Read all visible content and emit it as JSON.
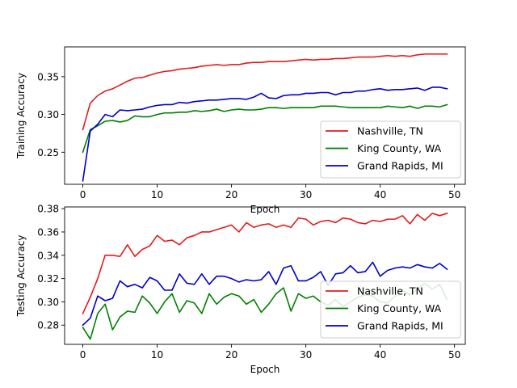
{
  "chart_data": [
    {
      "type": "line",
      "title": "",
      "xlabel": "Epoch",
      "ylabel": "Training Accuracy",
      "xlim": [
        -2.45,
        51.45
      ],
      "ylim": [
        0.2075,
        0.3895
      ],
      "xticks": [
        0,
        10,
        20,
        30,
        40,
        50
      ],
      "yticks": [
        0.25,
        0.3,
        0.35
      ],
      "ytick_labels": [
        "0.25",
        "0.30",
        "0.35"
      ],
      "grid": false,
      "legend": "lower-right",
      "x": [
        0,
        1,
        2,
        3,
        4,
        5,
        6,
        7,
        8,
        9,
        10,
        11,
        12,
        13,
        14,
        15,
        16,
        17,
        18,
        19,
        20,
        21,
        22,
        23,
        24,
        25,
        26,
        27,
        28,
        29,
        30,
        31,
        32,
        33,
        34,
        35,
        36,
        37,
        38,
        39,
        40,
        41,
        42,
        43,
        44,
        45,
        46,
        47,
        48,
        49
      ],
      "series": [
        {
          "name": "Nashville, TN",
          "color": "#e41a1c",
          "values": [
            0.28,
            0.315,
            0.325,
            0.331,
            0.334,
            0.339,
            0.344,
            0.348,
            0.349,
            0.352,
            0.355,
            0.357,
            0.358,
            0.36,
            0.361,
            0.362,
            0.364,
            0.365,
            0.366,
            0.365,
            0.366,
            0.366,
            0.368,
            0.369,
            0.369,
            0.37,
            0.37,
            0.37,
            0.371,
            0.372,
            0.373,
            0.372,
            0.373,
            0.373,
            0.374,
            0.374,
            0.375,
            0.376,
            0.376,
            0.376,
            0.377,
            0.378,
            0.377,
            0.378,
            0.377,
            0.379,
            0.38,
            0.38,
            0.38,
            0.38
          ]
        },
        {
          "name": "King County, WA",
          "color": "#008000",
          "values": [
            0.25,
            0.28,
            0.285,
            0.291,
            0.292,
            0.29,
            0.292,
            0.298,
            0.297,
            0.297,
            0.3,
            0.302,
            0.302,
            0.303,
            0.303,
            0.305,
            0.304,
            0.305,
            0.307,
            0.304,
            0.306,
            0.307,
            0.306,
            0.306,
            0.307,
            0.309,
            0.309,
            0.308,
            0.309,
            0.309,
            0.309,
            0.309,
            0.311,
            0.311,
            0.311,
            0.31,
            0.309,
            0.309,
            0.309,
            0.309,
            0.309,
            0.311,
            0.31,
            0.309,
            0.311,
            0.308,
            0.311,
            0.311,
            0.31,
            0.313
          ]
        },
        {
          "name": "Grand Rapids, MI",
          "color": "#0000cc",
          "values": [
            0.212,
            0.278,
            0.287,
            0.3,
            0.297,
            0.306,
            0.305,
            0.306,
            0.307,
            0.31,
            0.312,
            0.313,
            0.313,
            0.316,
            0.315,
            0.317,
            0.318,
            0.319,
            0.319,
            0.32,
            0.321,
            0.321,
            0.32,
            0.323,
            0.328,
            0.322,
            0.321,
            0.325,
            0.326,
            0.326,
            0.328,
            0.328,
            0.329,
            0.329,
            0.326,
            0.329,
            0.329,
            0.331,
            0.331,
            0.333,
            0.334,
            0.332,
            0.333,
            0.333,
            0.334,
            0.335,
            0.332,
            0.336,
            0.336,
            0.334
          ]
        }
      ]
    },
    {
      "type": "line",
      "title": "",
      "xlabel": "Epoch",
      "ylabel": "Testing Accuracy",
      "xlim": [
        -2.45,
        51.45
      ],
      "ylim": [
        0.2635,
        0.3815
      ],
      "xticks": [
        0,
        10,
        20,
        30,
        40,
        50
      ],
      "yticks": [
        0.28,
        0.3,
        0.32,
        0.34,
        0.36,
        0.38
      ],
      "ytick_labels": [
        "0.28",
        "0.30",
        "0.32",
        "0.34",
        "0.36",
        "0.38"
      ],
      "grid": false,
      "legend": "lower-right",
      "x": [
        0,
        1,
        2,
        3,
        4,
        5,
        6,
        7,
        8,
        9,
        10,
        11,
        12,
        13,
        14,
        15,
        16,
        17,
        18,
        19,
        20,
        21,
        22,
        23,
        24,
        25,
        26,
        27,
        28,
        29,
        30,
        31,
        32,
        33,
        34,
        35,
        36,
        37,
        38,
        39,
        40,
        41,
        42,
        43,
        44,
        45,
        46,
        47,
        48,
        49
      ],
      "series": [
        {
          "name": "Nashville, TN",
          "color": "#e41a1c",
          "values": [
            0.29,
            0.304,
            0.32,
            0.34,
            0.34,
            0.339,
            0.349,
            0.339,
            0.345,
            0.348,
            0.357,
            0.352,
            0.353,
            0.349,
            0.355,
            0.357,
            0.36,
            0.36,
            0.362,
            0.364,
            0.366,
            0.36,
            0.368,
            0.364,
            0.366,
            0.367,
            0.364,
            0.366,
            0.364,
            0.372,
            0.371,
            0.366,
            0.369,
            0.37,
            0.368,
            0.372,
            0.371,
            0.368,
            0.367,
            0.37,
            0.369,
            0.371,
            0.371,
            0.374,
            0.367,
            0.375,
            0.37,
            0.376,
            0.374,
            0.376
          ]
        },
        {
          "name": "King County, WA",
          "color": "#008000",
          "values": [
            0.278,
            0.268,
            0.29,
            0.298,
            0.276,
            0.287,
            0.292,
            0.291,
            0.305,
            0.299,
            0.29,
            0.3,
            0.307,
            0.291,
            0.301,
            0.299,
            0.29,
            0.307,
            0.298,
            0.304,
            0.307,
            0.305,
            0.298,
            0.302,
            0.291,
            0.298,
            0.307,
            0.312,
            0.292,
            0.307,
            0.303,
            0.305,
            0.3,
            0.297,
            0.302,
            0.296,
            0.3,
            0.304,
            0.306,
            0.305,
            0.3,
            0.299,
            0.305,
            0.31,
            0.306,
            0.311,
            0.316,
            0.311,
            0.315,
            0.302
          ]
        },
        {
          "name": "Grand Rapids, MI",
          "color": "#0000cc",
          "values": [
            0.28,
            0.286,
            0.305,
            0.301,
            0.303,
            0.318,
            0.313,
            0.315,
            0.312,
            0.321,
            0.318,
            0.31,
            0.31,
            0.324,
            0.316,
            0.315,
            0.324,
            0.315,
            0.322,
            0.322,
            0.32,
            0.317,
            0.319,
            0.318,
            0.319,
            0.326,
            0.315,
            0.329,
            0.331,
            0.318,
            0.318,
            0.321,
            0.326,
            0.314,
            0.324,
            0.325,
            0.331,
            0.325,
            0.326,
            0.334,
            0.322,
            0.327,
            0.329,
            0.33,
            0.329,
            0.332,
            0.33,
            0.329,
            0.333,
            0.328
          ]
        }
      ]
    }
  ]
}
